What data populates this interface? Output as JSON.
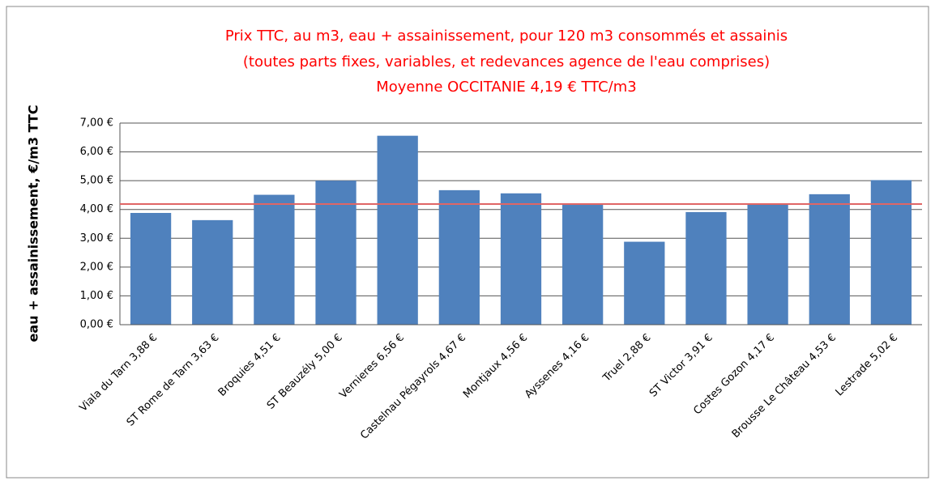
{
  "chart_data": {
    "type": "bar",
    "title": [
      "Prix TTC, au m3, eau + assainissement, pour 120 m3 consommés et assainis",
      "(toutes parts fixes, variables, et redevances agence de l'eau comprises)",
      "Moyenne OCCITANIE 4,19 € TTC/m3"
    ],
    "y_label": "eau + assainissement, €/m3 TTC",
    "categories": [
      "Viala du Tarn 3,88 €",
      "ST Rome de Tarn 3,63 €",
      "Broquies  4,51 €",
      "ST Beauzély 5,00 €",
      "Vernieres  6,56 €",
      "Castelnau Pégayrols 4,67 €",
      "Montjaux  4,56 €",
      "Ayssenes 4,16 €",
      "Truel 2,88 €",
      "ST Victor 3,91 €",
      "Costes  Gozon 4,17 €",
      "Brousse  Le Château 4,53 €",
      "Lestrade  5,02 €"
    ],
    "values": [
      3.88,
      3.63,
      4.51,
      5.0,
      6.56,
      4.67,
      4.56,
      4.16,
      2.88,
      3.91,
      4.17,
      4.53,
      5.02
    ],
    "color": "#4f81bd",
    "reference_line": {
      "value": 4.19,
      "color": "#e06666"
    },
    "ylim": [
      0,
      7
    ],
    "yticks": [
      {
        "value": 0,
        "label": "0,00 €"
      },
      {
        "value": 1,
        "label": "1,00 €"
      },
      {
        "value": 2,
        "label": "2,00 €"
      },
      {
        "value": 3,
        "label": "3,00 €"
      },
      {
        "value": 4,
        "label": "4,00 €"
      },
      {
        "value": 5,
        "label": "5,00 €"
      },
      {
        "value": 6,
        "label": "6,00 €"
      },
      {
        "value": 7,
        "label": "7,00 €"
      }
    ],
    "grid": true
  }
}
